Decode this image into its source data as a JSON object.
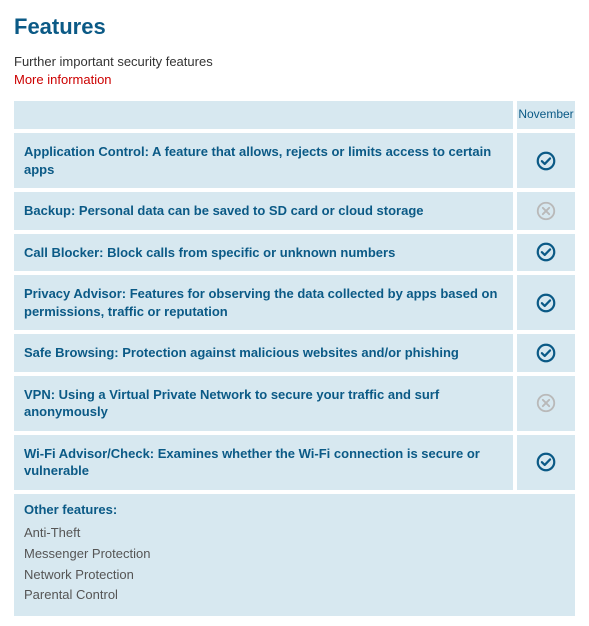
{
  "title": "Features",
  "subtitle": "Further important security features",
  "more_link": "More information",
  "header": {
    "month": "November"
  },
  "colors": {
    "heading": "#0b5a86",
    "row_bg": "#d7e8f0",
    "link": "#cc0000",
    "icon_yes": "#0b5a86",
    "icon_no": "#b9b9b9",
    "other_text": "#555555"
  },
  "rows": [
    {
      "text": "Application Control: A feature that allows, rejects or limits access to certain apps",
      "status": "yes"
    },
    {
      "text": "Backup: Personal data can be saved to SD card or cloud storage",
      "status": "no"
    },
    {
      "text": "Call Blocker: Block calls from specific or unknown numbers",
      "status": "yes"
    },
    {
      "text": "Privacy Advisor: Features for observing the data collected by apps based on permissions, traffic or reputation",
      "status": "yes"
    },
    {
      "text": "Safe Browsing: Protection against malicious websites and/or phishing",
      "status": "yes"
    },
    {
      "text": "VPN: Using a Virtual Private Network to secure your traffic and surf anonymously",
      "status": "no"
    },
    {
      "text": "Wi-Fi Advisor/Check: Examines whether the Wi-Fi connection is secure or vulnerable",
      "status": "yes"
    }
  ],
  "other": {
    "title": "Other features:",
    "items": [
      "Anti-Theft",
      "Messenger Protection",
      "Network Protection",
      "Parental Control"
    ]
  }
}
